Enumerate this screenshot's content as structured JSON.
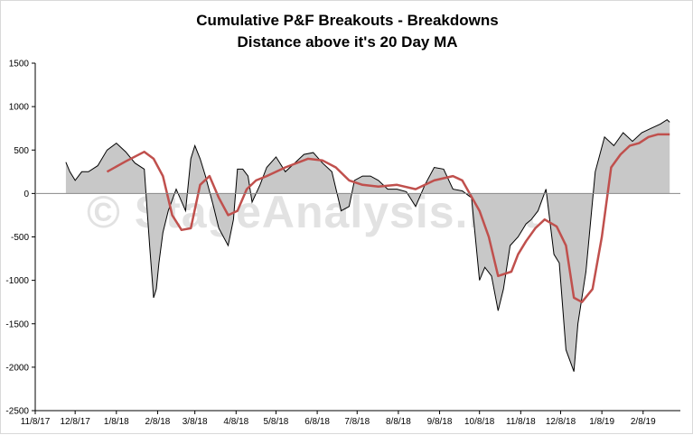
{
  "chart_data": {
    "type": "area",
    "title": "Cumulative P&F Breakouts - Breakdowns",
    "subtitle": "Distance above it's 20 Day MA",
    "watermark": "© StageAnalysis.net",
    "ylim": [
      -2500,
      1500
    ],
    "yticks": [
      1500,
      1000,
      500,
      0,
      -500,
      -1000,
      -1500,
      -2000,
      -2500
    ],
    "xlim": [
      "2017-11-08",
      "2019-03-08"
    ],
    "xticks": [
      "11/8/17",
      "12/8/17",
      "1/8/18",
      "2/8/18",
      "3/8/18",
      "4/8/18",
      "5/8/18",
      "6/8/18",
      "7/8/18",
      "8/8/18",
      "9/8/18",
      "10/8/18",
      "11/8/18",
      "12/8/18",
      "1/8/19",
      "2/8/19"
    ],
    "colors": {
      "area_fill": "#c8c8c8",
      "area_line": "#000000",
      "ma_line": "#c0504d",
      "axis": "#000000"
    },
    "series": [
      {
        "kind": "area",
        "x": [
          "2017-12-01",
          "2017-12-04",
          "2017-12-08",
          "2017-12-13",
          "2017-12-18",
          "2017-12-25",
          "2018-01-01",
          "2018-01-08",
          "2018-01-15",
          "2018-01-22",
          "2018-01-29",
          "2018-02-02",
          "2018-02-05",
          "2018-02-07",
          "2018-02-09",
          "2018-02-12",
          "2018-02-16",
          "2018-02-22",
          "2018-03-01",
          "2018-03-05",
          "2018-03-08",
          "2018-03-12",
          "2018-03-16",
          "2018-03-22",
          "2018-03-26",
          "2018-04-02",
          "2018-04-06",
          "2018-04-09",
          "2018-04-13",
          "2018-04-17",
          "2018-04-20",
          "2018-04-26",
          "2018-05-01",
          "2018-05-08",
          "2018-05-15",
          "2018-05-22",
          "2018-05-29",
          "2018-06-05",
          "2018-06-12",
          "2018-06-19",
          "2018-06-26",
          "2018-07-02",
          "2018-07-06",
          "2018-07-12",
          "2018-07-18",
          "2018-07-24",
          "2018-07-31",
          "2018-08-07",
          "2018-08-14",
          "2018-08-21",
          "2018-08-28",
          "2018-09-04",
          "2018-09-11",
          "2018-09-18",
          "2018-09-25",
          "2018-10-02",
          "2018-10-08",
          "2018-10-12",
          "2018-10-17",
          "2018-10-22",
          "2018-10-26",
          "2018-10-31",
          "2018-11-06",
          "2018-11-12",
          "2018-11-16",
          "2018-11-21",
          "2018-11-27",
          "2018-12-03",
          "2018-12-07",
          "2018-12-12",
          "2018-12-18",
          "2018-12-21",
          "2018-12-27",
          "2019-01-03",
          "2019-01-10",
          "2019-01-17",
          "2019-01-24",
          "2019-01-31",
          "2019-02-07",
          "2019-02-14",
          "2019-02-21",
          "2019-02-26",
          "2019-02-28"
        ],
        "values": [
          360,
          250,
          150,
          250,
          250,
          320,
          500,
          580,
          480,
          350,
          280,
          -600,
          -1200,
          -1100,
          -800,
          -450,
          -200,
          50,
          -200,
          400,
          550,
          400,
          200,
          -150,
          -400,
          -600,
          -300,
          280,
          280,
          200,
          -100,
          100,
          300,
          420,
          250,
          350,
          450,
          470,
          350,
          250,
          -200,
          -150,
          150,
          200,
          200,
          150,
          50,
          50,
          20,
          -150,
          100,
          300,
          280,
          50,
          30,
          -50,
          -1000,
          -850,
          -950,
          -1350,
          -1100,
          -600,
          -500,
          -350,
          -300,
          -200,
          50,
          -700,
          -800,
          -1800,
          -2050,
          -1500,
          -900,
          250,
          650,
          550,
          700,
          600,
          700,
          750,
          800,
          850,
          820
        ]
      },
      {
        "kind": "line",
        "name": "20 Day MA",
        "x": [
          "2018-01-01",
          "2018-01-15",
          "2018-01-29",
          "2018-02-05",
          "2018-02-12",
          "2018-02-19",
          "2018-02-26",
          "2018-03-05",
          "2018-03-12",
          "2018-03-19",
          "2018-03-26",
          "2018-04-02",
          "2018-04-09",
          "2018-04-16",
          "2018-04-23",
          "2018-05-01",
          "2018-05-15",
          "2018-06-01",
          "2018-06-12",
          "2018-06-22",
          "2018-07-02",
          "2018-07-12",
          "2018-07-24",
          "2018-08-07",
          "2018-08-21",
          "2018-09-04",
          "2018-09-18",
          "2018-09-25",
          "2018-10-08",
          "2018-10-15",
          "2018-10-22",
          "2018-11-01",
          "2018-11-06",
          "2018-11-12",
          "2018-11-19",
          "2018-11-26",
          "2018-12-05",
          "2018-12-12",
          "2018-12-18",
          "2018-12-24",
          "2019-01-01",
          "2019-01-08",
          "2019-01-15",
          "2019-01-22",
          "2019-01-29",
          "2019-02-05",
          "2019-02-12",
          "2019-02-19",
          "2019-02-28"
        ],
        "values": [
          250,
          370,
          480,
          400,
          200,
          -250,
          -420,
          -400,
          100,
          200,
          -50,
          -250,
          -200,
          50,
          150,
          200,
          300,
          400,
          380,
          300,
          150,
          100,
          80,
          100,
          50,
          150,
          200,
          150,
          -200,
          -500,
          -950,
          -900,
          -700,
          -550,
          -400,
          -300,
          -380,
          -600,
          -1200,
          -1250,
          -1100,
          -500,
          300,
          450,
          550,
          580,
          650,
          680,
          680
        ]
      }
    ]
  }
}
